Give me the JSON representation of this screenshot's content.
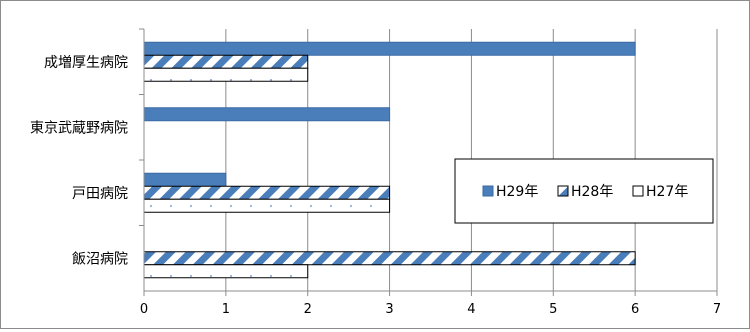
{
  "chart_data": {
    "type": "bar",
    "orientation": "horizontal",
    "categories": [
      "成増厚生病院",
      "東京武蔵野病院",
      "戸田病院",
      "飯沼病院"
    ],
    "series": [
      {
        "name": "H29年",
        "values": [
          6,
          3,
          1,
          0
        ],
        "pattern": "solid",
        "color": "#4a7ebb"
      },
      {
        "name": "H28年",
        "values": [
          2,
          0,
          3,
          6
        ],
        "pattern": "diagonal-stripes",
        "color": "#4a7ebb"
      },
      {
        "name": "H27年",
        "values": [
          2,
          0,
          3,
          2
        ],
        "pattern": "dotted",
        "color": "#ffffff"
      }
    ],
    "xlim": [
      0,
      7
    ],
    "x_ticks": [
      "0",
      "1",
      "2",
      "3",
      "4",
      "5",
      "6",
      "7"
    ],
    "grid": "vertical",
    "legend": {
      "placement": "right",
      "entries": [
        "H29年",
        "H28年",
        "H27年"
      ]
    },
    "title": "",
    "xlabel": "",
    "ylabel": ""
  }
}
